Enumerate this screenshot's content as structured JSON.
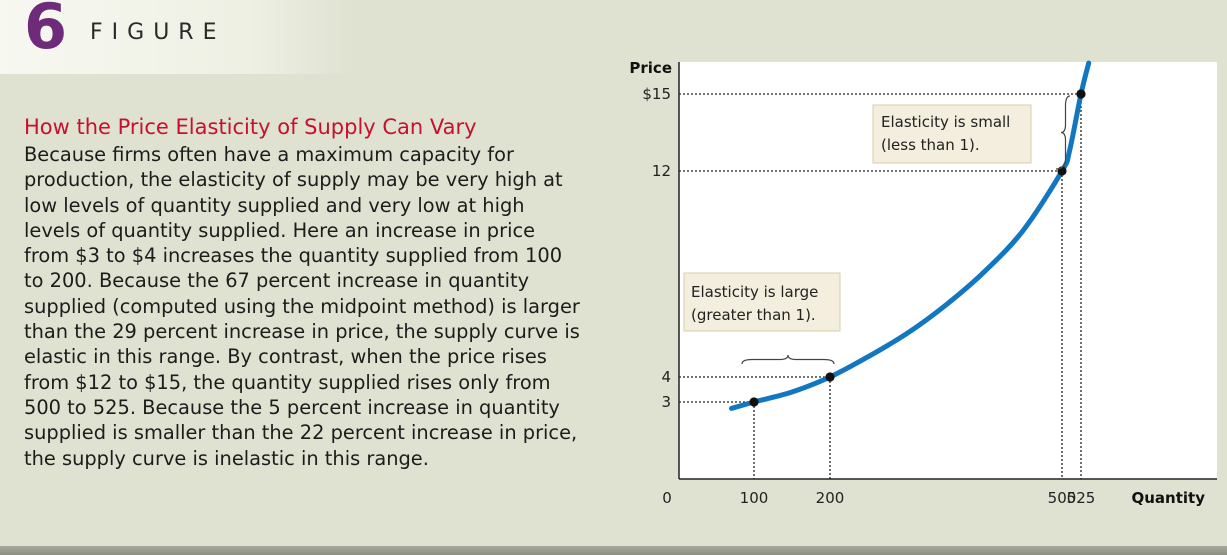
{
  "figure": {
    "number": "6",
    "word": "FIGURE"
  },
  "caption": {
    "title": "How the Price Elasticity of Supply Can Vary",
    "body": "Because firms often have a maximum capacity for production, the elasticity of supply may be very high at low levels of quantity supplied and very low at high levels of quantity supplied. Here an increase in price from $3 to $4 increases the quantity supplied from 100 to 200. Because the 67 percent increase in quantity supplied (computed using the midpoint method) is larger than the 29 percent increase in price, the supply curve is elastic in this range. By contrast, when the price rises from $12 to $15, the quantity supplied rises only from 500 to 525. Because the 5 percent increase in quantity supplied is smaller than the 22 percent increase in price, the supply curve is inelastic in this range."
  },
  "colors": {
    "curve": "#1277c0",
    "title": "#c8102e",
    "figure_number": "#6e2b7a",
    "annotation_box": "#f3eedd"
  },
  "chart_data": {
    "type": "line",
    "xlabel": "Quantity",
    "ylabel": "Price",
    "xlim": [
      0,
      560
    ],
    "ylim": [
      0,
      15.8
    ],
    "grid": false,
    "x_ticks": [
      {
        "value": 0,
        "label": "0"
      },
      {
        "value": 100,
        "label": "100"
      },
      {
        "value": 200,
        "label": "200"
      },
      {
        "value": 500,
        "label": "500"
      },
      {
        "value": 525,
        "label": "525"
      }
    ],
    "y_ticks": [
      {
        "value": 15,
        "label": "$15"
      },
      {
        "value": 12,
        "label": "12"
      },
      {
        "value": 4,
        "label": "4"
      },
      {
        "value": 3,
        "label": "3"
      }
    ],
    "series": [
      {
        "x": [
          70,
          100,
          150,
          200,
          250,
          300,
          350,
          400,
          450,
          500,
          510,
          525,
          535
        ],
        "y": [
          2.75,
          3,
          3.4,
          4,
          4.8,
          5.7,
          6.8,
          8.1,
          9.7,
          12,
          12.8,
          15,
          16.2
        ]
      }
    ],
    "points": [
      {
        "x": 100,
        "y": 3
      },
      {
        "x": 200,
        "y": 4
      },
      {
        "x": 500,
        "y": 12
      },
      {
        "x": 525,
        "y": 15
      }
    ],
    "annotations": [
      {
        "lines": [
          "Elasticity is large",
          "(greater than 1)."
        ],
        "range": {
          "x": [
            100,
            200
          ]
        }
      },
      {
        "lines": [
          "Elasticity is small",
          "(less than 1)."
        ],
        "range": {
          "y": [
            12,
            15
          ]
        }
      }
    ]
  }
}
